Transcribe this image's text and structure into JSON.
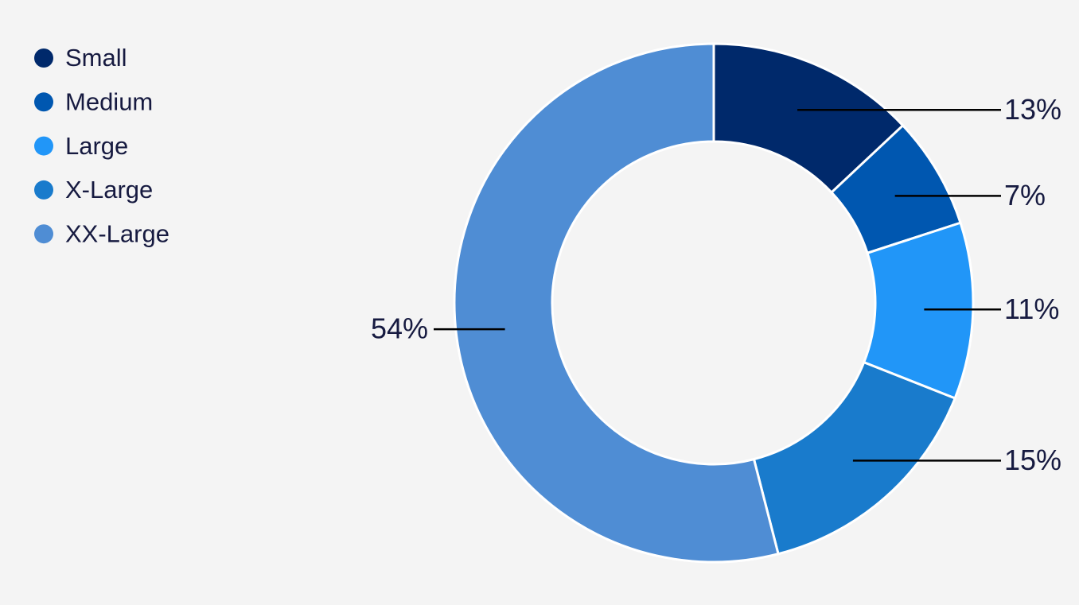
{
  "chart_data": {
    "type": "donut",
    "categories": [
      "Small",
      "Medium",
      "Large",
      "X-Large",
      "XX-Large"
    ],
    "values": [
      13,
      7,
      11,
      15,
      54
    ],
    "value_labels": [
      "13%",
      "7%",
      "11%",
      "15%",
      "54%"
    ],
    "colors": [
      "#00296b",
      "#0057b0",
      "#2196f8",
      "#197bcc",
      "#4f8dd4"
    ],
    "legend": "top-left"
  }
}
